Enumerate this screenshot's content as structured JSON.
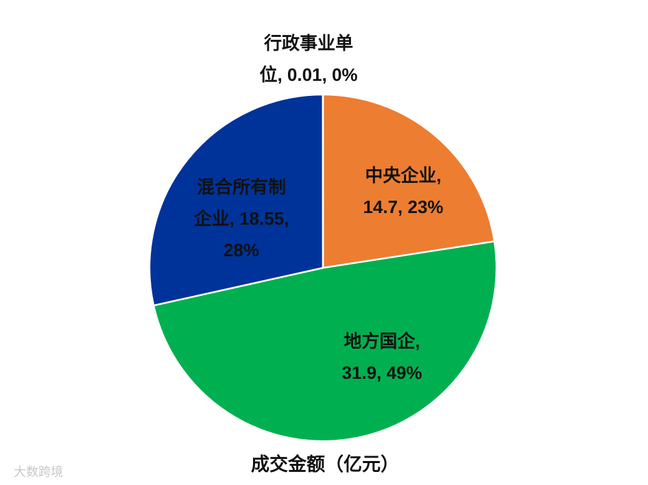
{
  "chart_data": {
    "type": "pie",
    "title": "成交金额（亿元）",
    "categories": [
      "中央企业",
      "地方国企",
      "混合所有制企业",
      "行政事业单位"
    ],
    "values": [
      14.7,
      31.9,
      18.55,
      0.01
    ],
    "value_labels": [
      [
        "中央企业,",
        "14.7, 23%"
      ],
      [
        "地方国企,",
        "31.9, 49%"
      ],
      [
        "混合所有制",
        "企业, 18.55,",
        "28%"
      ],
      [
        "行政事业单",
        "位, 0.01, 0%"
      ]
    ],
    "colors": [
      "#ED7D31",
      "#00B050",
      "#003399",
      "#4472C4"
    ],
    "watermark": "大数跨境"
  }
}
